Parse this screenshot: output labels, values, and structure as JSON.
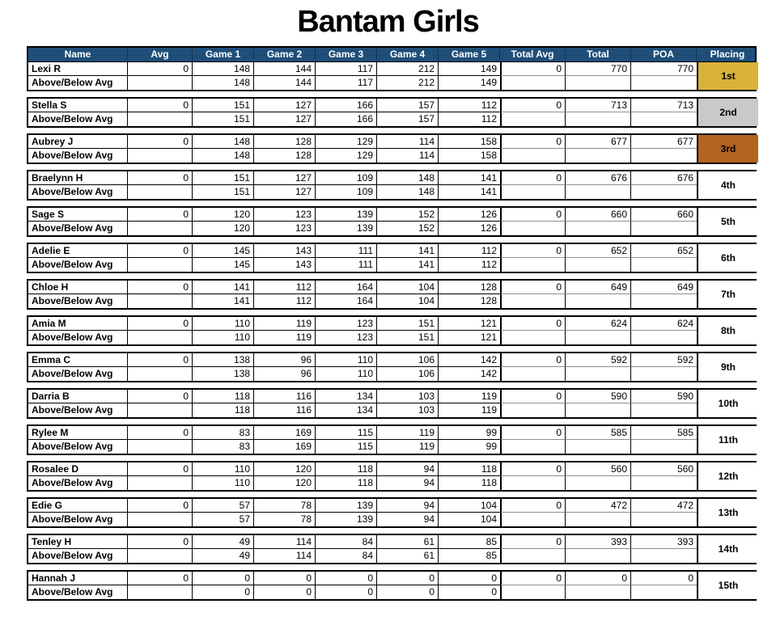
{
  "title": "Bantam Girls",
  "table": {
    "columns": [
      "Name",
      "Avg",
      "Game 1",
      "Game 2",
      "Game 3",
      "Game 4",
      "Game 5",
      "Total Avg",
      "Total",
      "POA",
      "Placing"
    ],
    "sub_row_label": "Above/Below Avg",
    "rows": [
      {
        "name": "Lexi R",
        "avg": "0",
        "games": [
          "148",
          "144",
          "117",
          "212",
          "149"
        ],
        "above_below": [
          "148",
          "144",
          "117",
          "212",
          "149"
        ],
        "total_avg": "0",
        "total": "770",
        "poa": "770",
        "placing": "1st",
        "medal": "gold"
      },
      {
        "name": "Stella S",
        "avg": "0",
        "games": [
          "151",
          "127",
          "166",
          "157",
          "112"
        ],
        "above_below": [
          "151",
          "127",
          "166",
          "157",
          "112"
        ],
        "total_avg": "0",
        "total": "713",
        "poa": "713",
        "placing": "2nd",
        "medal": "silver"
      },
      {
        "name": "Aubrey J",
        "avg": "0",
        "games": [
          "148",
          "128",
          "129",
          "114",
          "158"
        ],
        "above_below": [
          "148",
          "128",
          "129",
          "114",
          "158"
        ],
        "total_avg": "0",
        "total": "677",
        "poa": "677",
        "placing": "3rd",
        "medal": "bronze"
      },
      {
        "name": "Braelynn H",
        "avg": "0",
        "games": [
          "151",
          "127",
          "109",
          "148",
          "141"
        ],
        "above_below": [
          "151",
          "127",
          "109",
          "148",
          "141"
        ],
        "total_avg": "0",
        "total": "676",
        "poa": "676",
        "placing": "4th",
        "medal": "none"
      },
      {
        "name": "Sage S",
        "avg": "0",
        "games": [
          "120",
          "123",
          "139",
          "152",
          "126"
        ],
        "above_below": [
          "120",
          "123",
          "139",
          "152",
          "126"
        ],
        "total_avg": "0",
        "total": "660",
        "poa": "660",
        "placing": "5th",
        "medal": "none"
      },
      {
        "name": "Adelie E",
        "avg": "0",
        "games": [
          "145",
          "143",
          "111",
          "141",
          "112"
        ],
        "above_below": [
          "145",
          "143",
          "111",
          "141",
          "112"
        ],
        "total_avg": "0",
        "total": "652",
        "poa": "652",
        "placing": "6th",
        "medal": "none"
      },
      {
        "name": "Chloe H",
        "avg": "0",
        "games": [
          "141",
          "112",
          "164",
          "104",
          "128"
        ],
        "above_below": [
          "141",
          "112",
          "164",
          "104",
          "128"
        ],
        "total_avg": "0",
        "total": "649",
        "poa": "649",
        "placing": "7th",
        "medal": "none"
      },
      {
        "name": "Amia M",
        "avg": "0",
        "games": [
          "110",
          "119",
          "123",
          "151",
          "121"
        ],
        "above_below": [
          "110",
          "119",
          "123",
          "151",
          "121"
        ],
        "total_avg": "0",
        "total": "624",
        "poa": "624",
        "placing": "8th",
        "medal": "none"
      },
      {
        "name": "Emma C",
        "avg": "0",
        "games": [
          "138",
          "96",
          "110",
          "106",
          "142"
        ],
        "above_below": [
          "138",
          "96",
          "110",
          "106",
          "142"
        ],
        "total_avg": "0",
        "total": "592",
        "poa": "592",
        "placing": "9th",
        "medal": "none"
      },
      {
        "name": "Darria B",
        "avg": "0",
        "games": [
          "118",
          "116",
          "134",
          "103",
          "119"
        ],
        "above_below": [
          "118",
          "116",
          "134",
          "103",
          "119"
        ],
        "total_avg": "0",
        "total": "590",
        "poa": "590",
        "placing": "10th",
        "medal": "none"
      },
      {
        "name": "Rylee M",
        "avg": "0",
        "games": [
          "83",
          "169",
          "115",
          "119",
          "99"
        ],
        "above_below": [
          "83",
          "169",
          "115",
          "119",
          "99"
        ],
        "total_avg": "0",
        "total": "585",
        "poa": "585",
        "placing": "11th",
        "medal": "none"
      },
      {
        "name": "Rosalee D",
        "avg": "0",
        "games": [
          "110",
          "120",
          "118",
          "94",
          "118"
        ],
        "above_below": [
          "110",
          "120",
          "118",
          "94",
          "118"
        ],
        "total_avg": "0",
        "total": "560",
        "poa": "560",
        "placing": "12th",
        "medal": "none"
      },
      {
        "name": "Edie G",
        "avg": "0",
        "games": [
          "57",
          "78",
          "139",
          "94",
          "104"
        ],
        "above_below": [
          "57",
          "78",
          "139",
          "94",
          "104"
        ],
        "total_avg": "0",
        "total": "472",
        "poa": "472",
        "placing": "13th",
        "medal": "none"
      },
      {
        "name": "Tenley H",
        "avg": "0",
        "games": [
          "49",
          "114",
          "84",
          "61",
          "85"
        ],
        "above_below": [
          "49",
          "114",
          "84",
          "61",
          "85"
        ],
        "total_avg": "0",
        "total": "393",
        "poa": "393",
        "placing": "14th",
        "medal": "none"
      },
      {
        "name": "Hannah J",
        "avg": "0",
        "games": [
          "0",
          "0",
          "0",
          "0",
          "0"
        ],
        "above_below": [
          "0",
          "0",
          "0",
          "0",
          "0"
        ],
        "total_avg": "0",
        "total": "0",
        "poa": "0",
        "placing": "15th",
        "medal": "none"
      }
    ]
  },
  "colors": {
    "header_bg": "#1F4E79",
    "header_text": "#FFFFFF",
    "medal": {
      "gold": "#D9B239",
      "silver": "#C9C9C9",
      "bronze": "#B3641F",
      "none": "#FFFFFF"
    }
  }
}
